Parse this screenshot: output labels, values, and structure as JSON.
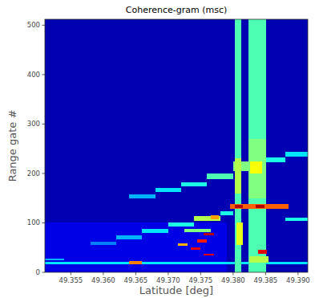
{
  "chart_data": {
    "type": "heatmap",
    "title": "Coherence-gram (msc)",
    "x_label": "Latitude [deg]",
    "y_label": "Range gate #",
    "xlim": [
      49.351,
      49.3915
    ],
    "ylim": [
      0,
      512
    ],
    "xticks": [
      49.355,
      {
        "value": 49.36,
        "label": "49.360"
      },
      49.365,
      {
        "value": 49.37,
        "label": "49.370"
      },
      49.375,
      {
        "value": 49.38,
        "label": "49.380"
      },
      49.385,
      {
        "value": 49.39,
        "label": "49.390"
      }
    ],
    "yticks": [
      0,
      100,
      200,
      300,
      400,
      500
    ],
    "color": "jet",
    "zlim": [
      0,
      1
    ],
    "cells": [
      {
        "x0": 49.351,
        "x1": 49.3915,
        "y0": 0,
        "y1": 512,
        "value": 0.05
      },
      {
        "x0": 49.351,
        "x1": 49.379,
        "y0": 0,
        "y1": 100,
        "value": 0.1
      },
      {
        "x0": 49.351,
        "x1": 49.3915,
        "y0": 16,
        "y1": 21,
        "value": 0.35
      },
      {
        "x0": 49.351,
        "x1": 49.354,
        "y0": 24,
        "y1": 28,
        "value": 0.3
      },
      {
        "x0": 49.364,
        "x1": 49.366,
        "y0": 17,
        "y1": 22,
        "value": 0.75
      },
      {
        "x0": 49.358,
        "x1": 49.362,
        "y0": 55,
        "y1": 62,
        "value": 0.25
      },
      {
        "x0": 49.362,
        "x1": 49.366,
        "y0": 66,
        "y1": 74,
        "value": 0.3
      },
      {
        "x0": 49.366,
        "x1": 49.37,
        "y0": 80,
        "y1": 88,
        "value": 0.35
      },
      {
        "x0": 49.37,
        "x1": 49.374,
        "y0": 92,
        "y1": 100,
        "value": 0.4
      },
      {
        "x0": 49.374,
        "x1": 49.378,
        "y0": 104,
        "y1": 114,
        "value": 0.55
      },
      {
        "x0": 49.3765,
        "x1": 49.3778,
        "y0": 108,
        "y1": 116,
        "value": 0.72
      },
      {
        "x0": 49.378,
        "x1": 49.38,
        "y0": 116,
        "y1": 124,
        "value": 0.4
      },
      {
        "x0": 49.364,
        "x1": 49.368,
        "y0": 150,
        "y1": 158,
        "value": 0.3
      },
      {
        "x0": 49.368,
        "x1": 49.372,
        "y0": 162,
        "y1": 170,
        "value": 0.35
      },
      {
        "x0": 49.372,
        "x1": 49.376,
        "y0": 174,
        "y1": 182,
        "value": 0.4
      },
      {
        "x0": 49.376,
        "x1": 49.38,
        "y0": 188,
        "y1": 200,
        "value": 0.45
      },
      {
        "x0": 49.38,
        "x1": 49.384,
        "y0": 205,
        "y1": 225,
        "value": 0.5
      },
      {
        "x0": 49.384,
        "x1": 49.388,
        "y0": 222,
        "y1": 232,
        "value": 0.4
      },
      {
        "x0": 49.388,
        "x1": 49.3915,
        "y0": 234,
        "y1": 244,
        "value": 0.35
      },
      {
        "x0": 49.388,
        "x1": 49.3915,
        "y0": 104,
        "y1": 110,
        "value": 0.4
      },
      {
        "x0": 49.3755,
        "x1": 49.377,
        "y0": 74,
        "y1": 80,
        "value": 0.95
      },
      {
        "x0": 49.3745,
        "x1": 49.376,
        "y0": 60,
        "y1": 66,
        "value": 0.85
      },
      {
        "x0": 49.3735,
        "x1": 49.375,
        "y0": 45,
        "y1": 51,
        "value": 0.9
      },
      {
        "x0": 49.3755,
        "x1": 49.377,
        "y0": 34,
        "y1": 38,
        "value": 0.9
      },
      {
        "x0": 49.3715,
        "x1": 49.373,
        "y0": 53,
        "y1": 58,
        "value": 0.7
      },
      {
        "x0": 49.3725,
        "x1": 49.3765,
        "y0": 82,
        "y1": 88,
        "value": 0.5
      },
      {
        "x0": 49.3803,
        "x1": 49.3813,
        "y0": 0,
        "y1": 512,
        "value": 0.45
      },
      {
        "x0": 49.3824,
        "x1": 49.3851,
        "y0": 0,
        "y1": 512,
        "value": 0.45
      },
      {
        "x0": 49.3824,
        "x1": 49.3851,
        "y0": 150,
        "y1": 270,
        "value": 0.5
      },
      {
        "x0": 49.3826,
        "x1": 49.3845,
        "y0": 200,
        "y1": 225,
        "value": 0.62
      },
      {
        "x0": 49.3803,
        "x1": 49.3813,
        "y0": 160,
        "y1": 230,
        "value": 0.55
      },
      {
        "x0": 49.3795,
        "x1": 49.3885,
        "y0": 129,
        "y1": 138,
        "value": 0.78
      },
      {
        "x0": 49.3803,
        "x1": 49.3815,
        "y0": 130,
        "y1": 137,
        "value": 0.95
      },
      {
        "x0": 49.3835,
        "x1": 49.3848,
        "y0": 130,
        "y1": 137,
        "value": 0.95
      },
      {
        "x0": 49.3838,
        "x1": 49.3852,
        "y0": 38,
        "y1": 46,
        "value": 0.9
      },
      {
        "x0": 49.3825,
        "x1": 49.3855,
        "y0": 20,
        "y1": 32,
        "value": 0.55
      },
      {
        "x0": 49.3805,
        "x1": 49.3815,
        "y0": 55,
        "y1": 100,
        "value": 0.6
      }
    ]
  }
}
